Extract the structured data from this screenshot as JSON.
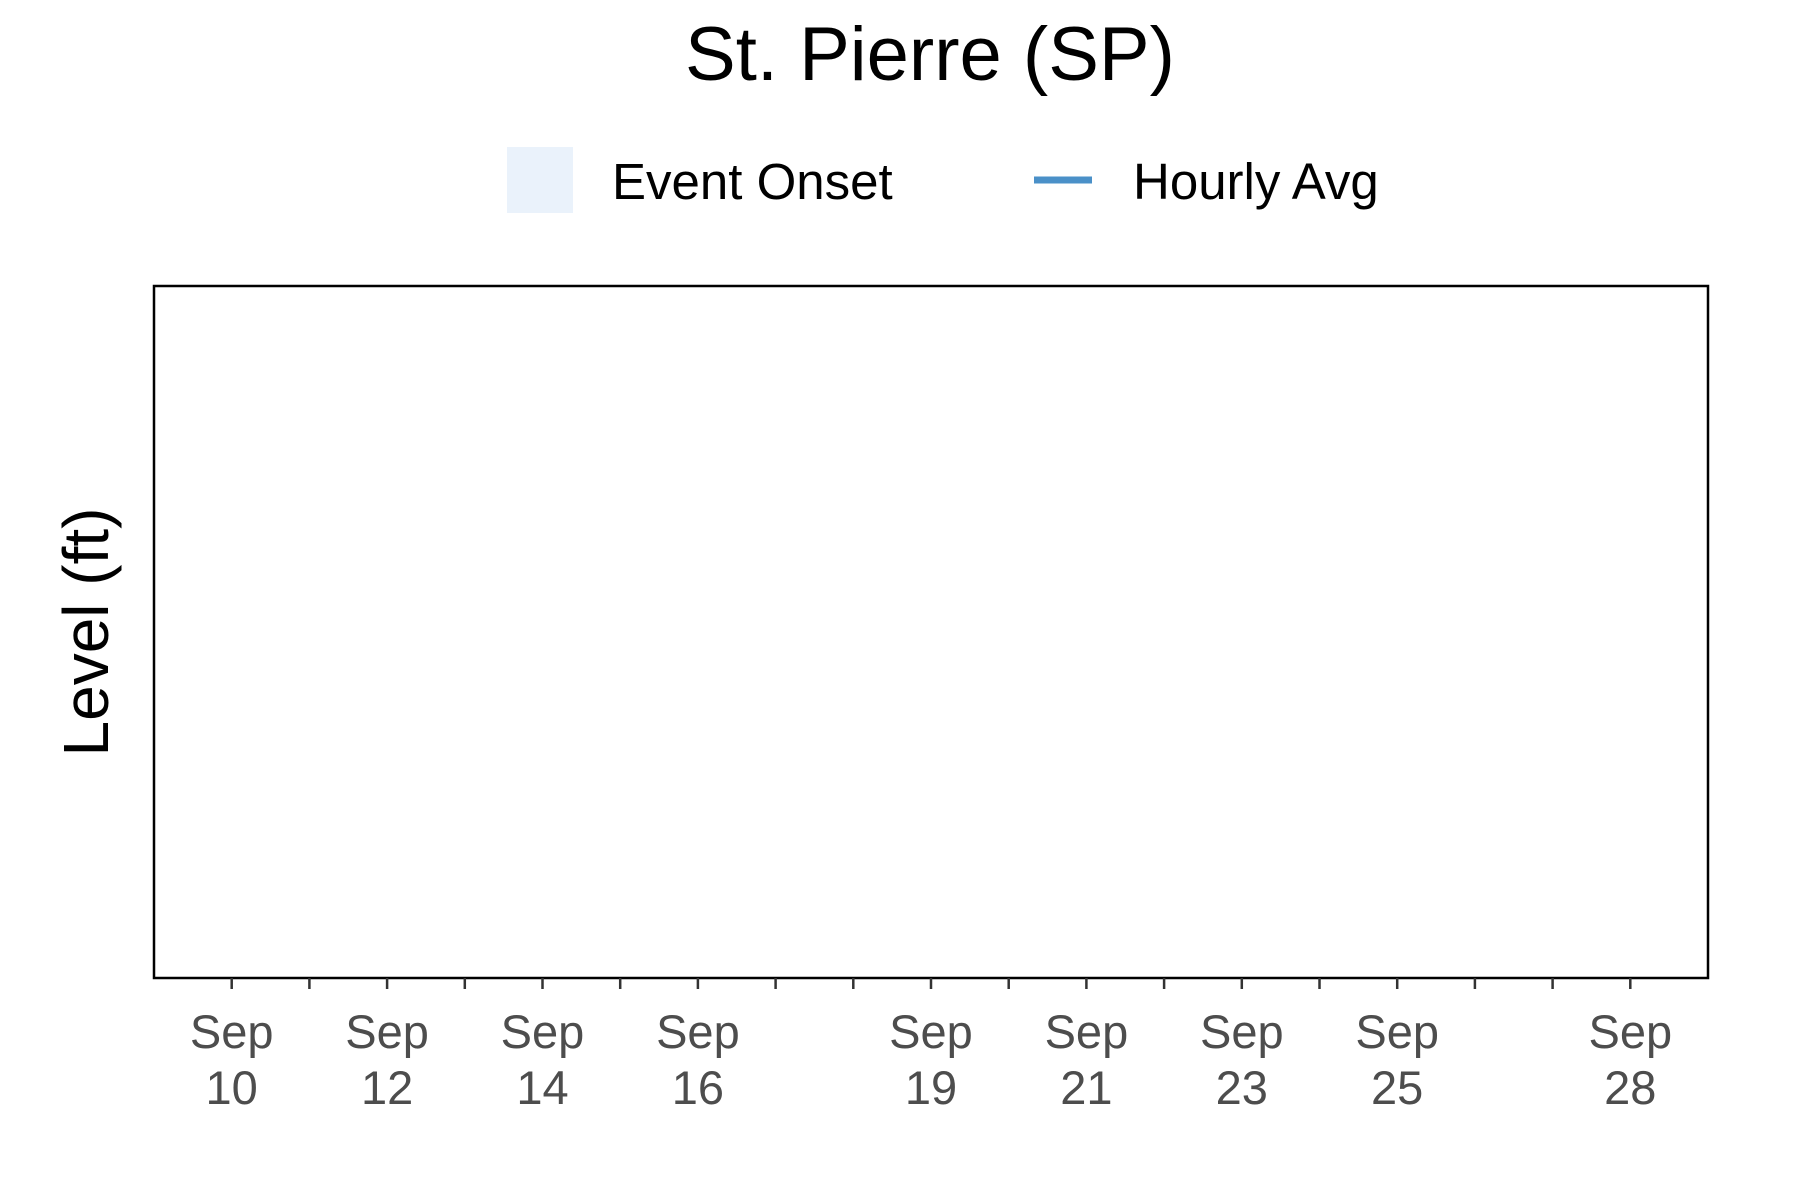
{
  "chart_data": {
    "type": "line",
    "title": "St. Pierre (SP)",
    "xlabel": "",
    "ylabel": "Level (ft)",
    "x_axis": "date",
    "xlim": [
      "2024-09-09",
      "2024-09-29"
    ],
    "x_tick_labels": [
      {
        "date": "2024-09-10",
        "month": "Sep",
        "day": "10"
      },
      {
        "date": "2024-09-12",
        "month": "Sep",
        "day": "12"
      },
      {
        "date": "2024-09-14",
        "month": "Sep",
        "day": "14"
      },
      {
        "date": "2024-09-16",
        "month": "Sep",
        "day": "16"
      },
      {
        "date": "2024-09-19",
        "month": "Sep",
        "day": "19"
      },
      {
        "date": "2024-09-21",
        "month": "Sep",
        "day": "21"
      },
      {
        "date": "2024-09-23",
        "month": "Sep",
        "day": "23"
      },
      {
        "date": "2024-09-25",
        "month": "Sep",
        "day": "25"
      },
      {
        "date": "2024-09-28",
        "month": "Sep",
        "day": "28"
      }
    ],
    "x_minor_ticks": [
      "2024-09-11",
      "2024-09-13",
      "2024-09-15",
      "2024-09-17",
      "2024-09-18",
      "2024-09-20",
      "2024-09-22",
      "2024-09-24",
      "2024-09-26",
      "2024-09-27"
    ],
    "legend": {
      "placement": "top",
      "entries": [
        {
          "label": "Event Onset",
          "kind": "fill",
          "color": "#eaf2fb"
        },
        {
          "label": "Hourly Avg",
          "kind": "line",
          "color": "#4a90c8"
        }
      ]
    },
    "series": [
      {
        "name": "Hourly Avg",
        "color": "#4a90c8",
        "points": []
      }
    ],
    "shaded_regions": [],
    "grid": false,
    "colors": {
      "panel_border": "#000000",
      "tick_label": "#4d4d4d"
    }
  }
}
